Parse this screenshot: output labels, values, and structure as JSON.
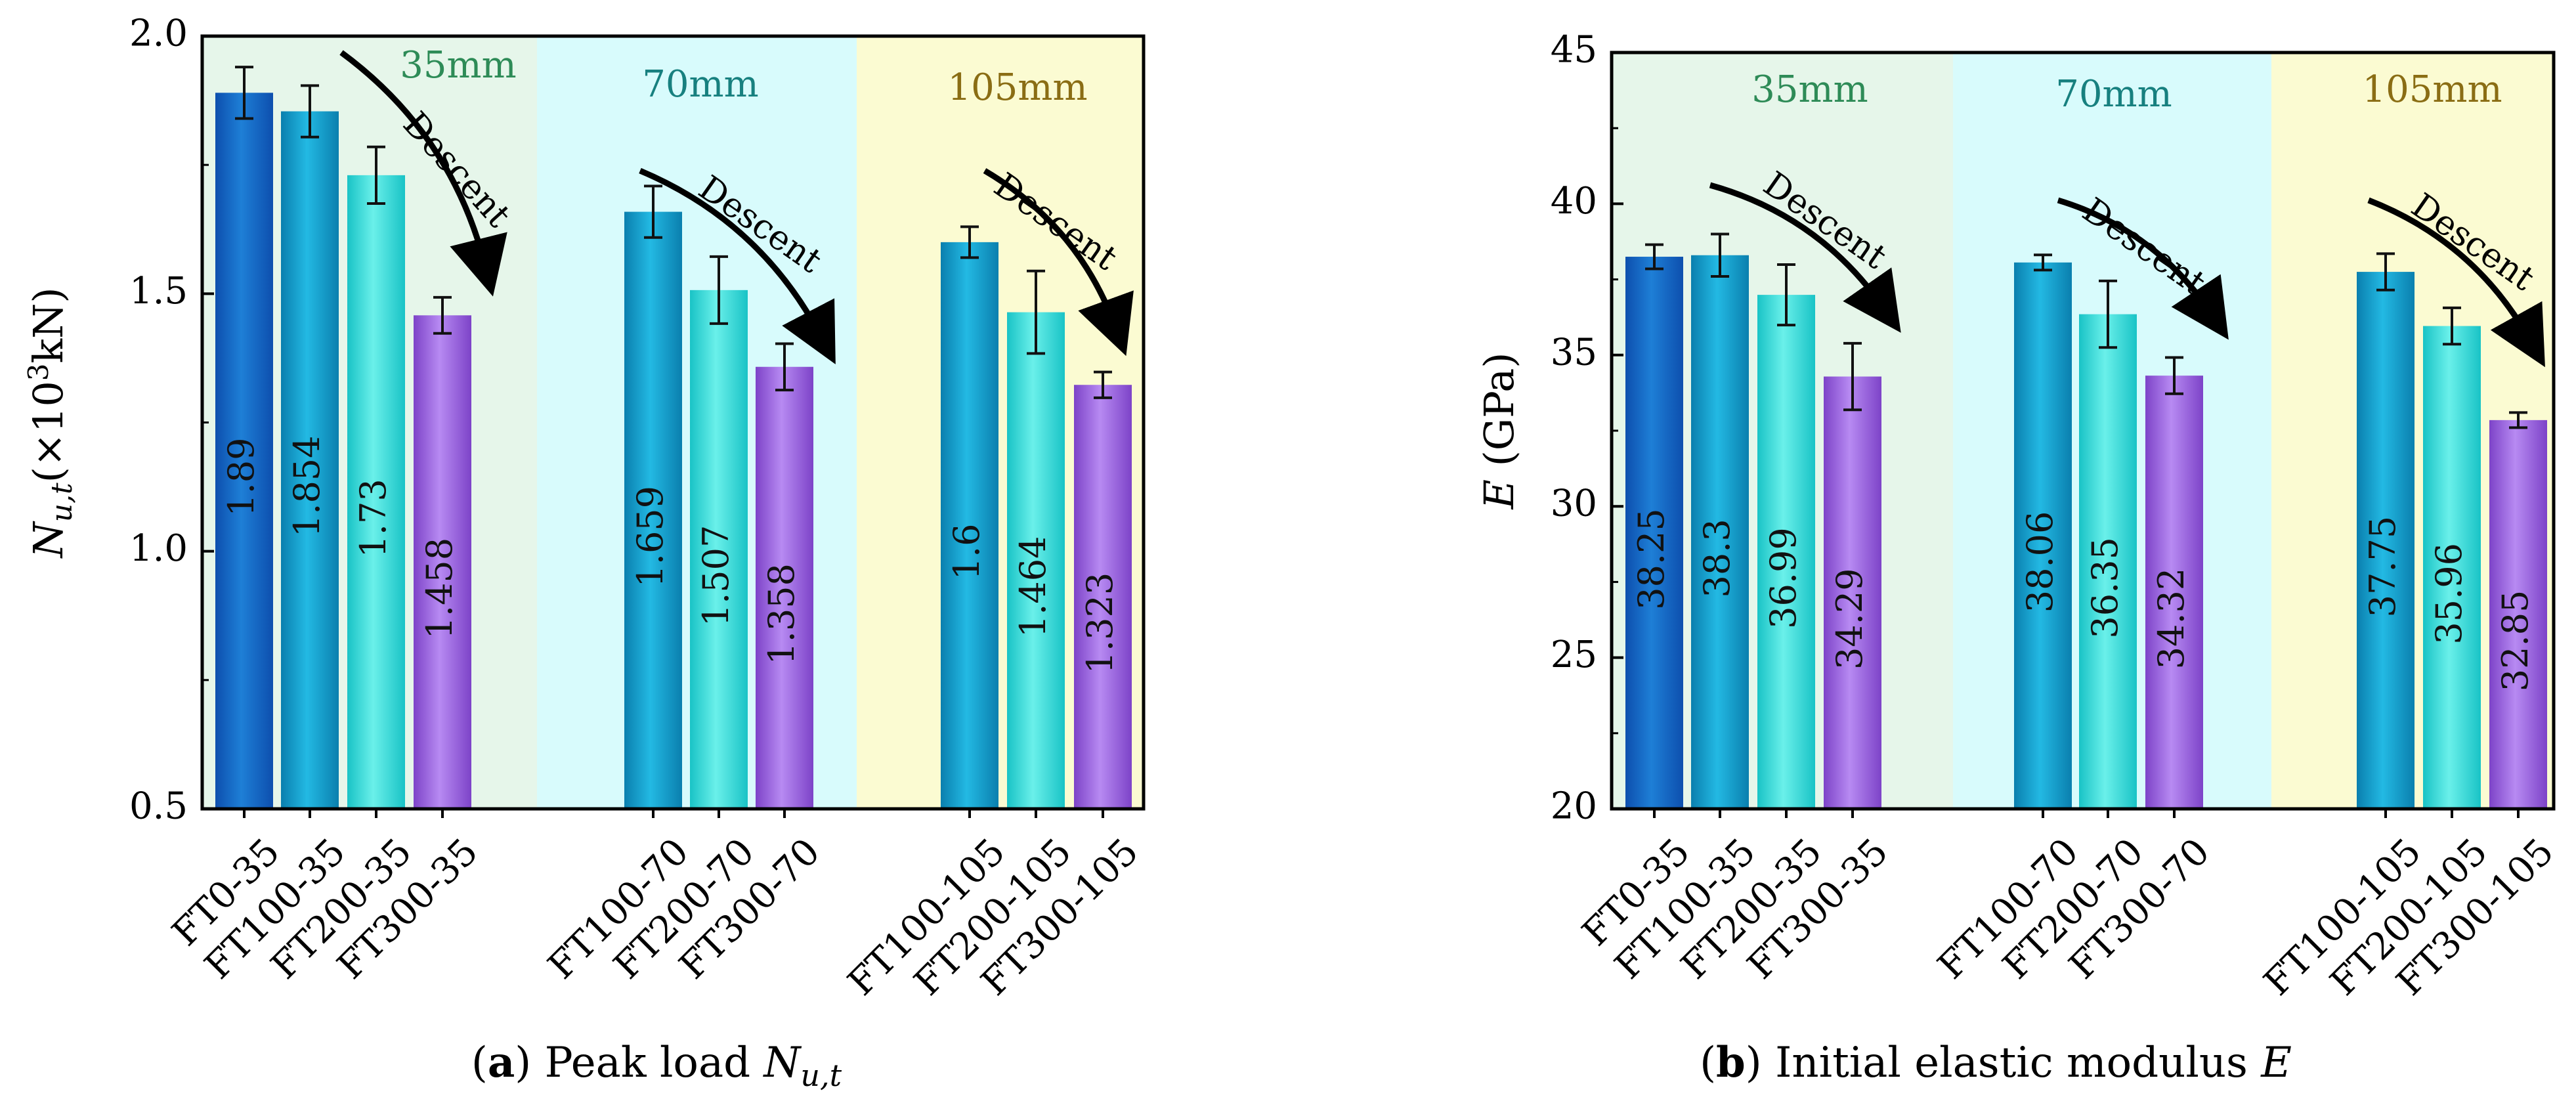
{
  "chart_data": [
    {
      "type": "bar",
      "ylabel": {
        "main": "N",
        "sub": "u,t",
        "unit_prefix": "(×10",
        "unit_sup": "3",
        "unit_suffix": "kN)"
      },
      "ylim": [
        0.5,
        2.0
      ],
      "yticks": [
        "0.5",
        "1.0",
        "1.5",
        "2.0"
      ],
      "bands": [
        {
          "label": "35mm",
          "color": "#e6f6ea",
          "text_color": "#2e8b57"
        },
        {
          "label": "70mm",
          "color": "#d8fbfc",
          "text_color": "#17807f"
        },
        {
          "label": "105mm",
          "color": "#fbfbd2",
          "text_color": "#8a6d14"
        }
      ],
      "groups": [
        {
          "band": 0,
          "categories": [
            "FT0-35",
            "FT100-35",
            "FT200-35",
            "FT300-35"
          ],
          "values": [
            1.89,
            1.854,
            1.73,
            1.458
          ],
          "labels": [
            "1.89",
            "1.854",
            "1.73",
            "1.458"
          ],
          "errors": [
            0.05,
            0.05,
            0.055,
            0.035
          ]
        },
        {
          "band": 1,
          "categories": [
            "FT100-70",
            "FT200-70",
            "FT300-70"
          ],
          "values": [
            1.659,
            1.507,
            1.358
          ],
          "labels": [
            "1.659",
            "1.507",
            "1.358"
          ],
          "errors": [
            0.05,
            0.065,
            0.045
          ]
        },
        {
          "band": 2,
          "categories": [
            "FT100-105",
            "FT200-105",
            "FT300-105"
          ],
          "values": [
            1.6,
            1.464,
            1.323
          ],
          "labels": [
            "1.6",
            "1.464",
            "1.323"
          ],
          "errors": [
            0.03,
            0.08,
            0.025
          ]
        }
      ],
      "annotation": "Descent",
      "caption": {
        "letter": "a",
        "text": " Peak load ",
        "symbol": "N",
        "symbol_sub": "u,t"
      }
    },
    {
      "type": "bar",
      "ylabel": {
        "main": "E",
        "sub": "",
        "unit_prefix": " (GPa)",
        "unit_sup": "",
        "unit_suffix": ""
      },
      "ylim": [
        20,
        45
      ],
      "yticks": [
        "20",
        "25",
        "30",
        "35",
        "40",
        "45"
      ],
      "bands": [
        {
          "label": "35mm",
          "color": "#e6f6ea",
          "text_color": "#2e8b57"
        },
        {
          "label": "70mm",
          "color": "#d8fbfc",
          "text_color": "#17807f"
        },
        {
          "label": "105mm",
          "color": "#fbfbd2",
          "text_color": "#8a6d14"
        }
      ],
      "groups": [
        {
          "band": 0,
          "categories": [
            "FT0-35",
            "FT100-35",
            "FT200-35",
            "FT300-35"
          ],
          "values": [
            38.25,
            38.3,
            36.99,
            34.29
          ],
          "labels": [
            "38.25",
            "38.3",
            "36.99",
            "34.29"
          ],
          "errors": [
            0.4,
            0.7,
            1.0,
            1.1
          ]
        },
        {
          "band": 1,
          "categories": [
            "FT100-70",
            "FT200-70",
            "FT300-70"
          ],
          "values": [
            38.06,
            36.35,
            34.32
          ],
          "labels": [
            "38.06",
            "36.35",
            "34.32"
          ],
          "errors": [
            0.25,
            1.1,
            0.6
          ]
        },
        {
          "band": 2,
          "categories": [
            "FT100-105",
            "FT200-105",
            "FT300-105"
          ],
          "values": [
            37.75,
            35.96,
            32.85
          ],
          "labels": [
            "37.75",
            "35.96",
            "32.85"
          ],
          "errors": [
            0.6,
            0.6,
            0.25
          ]
        }
      ],
      "annotation": "Descent",
      "caption": {
        "letter": "b",
        "text": " Initial elastic modulus ",
        "symbol": "E",
        "symbol_sub": ""
      }
    }
  ],
  "bar_colors": {
    "FT0": [
      "#1e7fd6",
      "#0d4fae"
    ],
    "FT100": [
      "#23b9e3",
      "#0a7fae"
    ],
    "FT200": [
      "#6af0ea",
      "#19c3c6"
    ],
    "FT300": [
      "#b78af2",
      "#7d43c8"
    ]
  }
}
